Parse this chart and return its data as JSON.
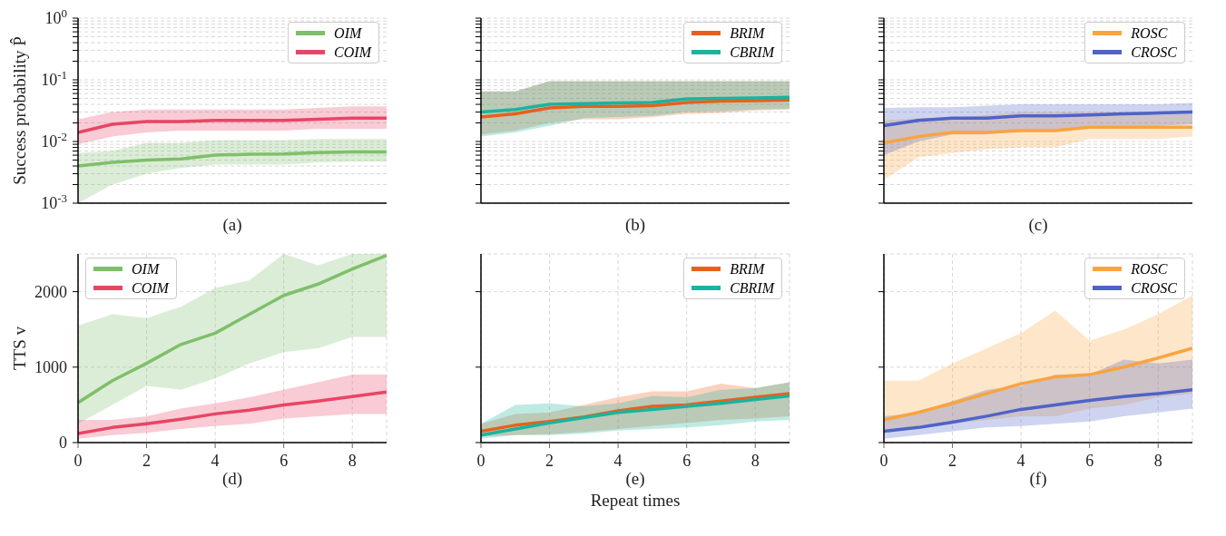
{
  "chart_data": [
    {
      "type": "line",
      "title": "(a)",
      "ylabel": "Success probability P̂",
      "log": "y",
      "grid": "y",
      "legend": "top right",
      "tick_labels": "y",
      "x": [
        0,
        1,
        2,
        3,
        4,
        5,
        6,
        7,
        8,
        9
      ],
      "xlim": [
        0,
        9
      ],
      "ylim": [
        0.001,
        1
      ],
      "yticks": [
        {
          "value": 0.001,
          "label": "10$^{-3}$"
        },
        {
          "value": 0.002,
          "label": null
        },
        {
          "value": 0.003,
          "label": null
        },
        {
          "value": 0.004,
          "label": null
        },
        {
          "value": 0.005,
          "label": null
        },
        {
          "value": 0.006,
          "label": null
        },
        {
          "value": 0.007,
          "label": null
        },
        {
          "value": 0.008,
          "label": null
        },
        {
          "value": 0.009,
          "label": null
        },
        {
          "value": 0.01,
          "label": "10$^{-2}$"
        },
        {
          "value": 0.02,
          "label": null
        },
        {
          "value": 0.03,
          "label": null
        },
        {
          "value": 0.04,
          "label": null
        },
        {
          "value": 0.05,
          "label": null
        },
        {
          "value": 0.06,
          "label": null
        },
        {
          "value": 0.07,
          "label": null
        },
        {
          "value": 0.08,
          "label": null
        },
        {
          "value": 0.09,
          "label": null
        },
        {
          "value": 0.1,
          "label": "10$^{-1}$"
        },
        {
          "value": 0.2,
          "label": null
        },
        {
          "value": 0.3,
          "label": null
        },
        {
          "value": 0.4,
          "label": null
        },
        {
          "value": 0.5,
          "label": null
        },
        {
          "value": 0.6,
          "label": null
        },
        {
          "value": 0.7,
          "label": null
        },
        {
          "value": 0.8,
          "label": null
        },
        {
          "value": 0.9,
          "label": null
        },
        {
          "value": 1,
          "label": "10$^{0}$"
        }
      ],
      "series": [
        {
          "name": "OIM",
          "color": "#7fbf6a",
          "values": [
            0.004,
            0.0046,
            0.005,
            0.0052,
            0.006,
            0.0062,
            0.0063,
            0.0066,
            0.0068,
            0.0068
          ],
          "lower": [
            0.001,
            0.002,
            0.003,
            0.0037,
            0.0042,
            0.0042,
            0.0042,
            0.0046,
            0.0047,
            0.0047
          ],
          "upper": [
            0.0065,
            0.007,
            0.0095,
            0.0095,
            0.0105,
            0.0105,
            0.0105,
            0.011,
            0.011,
            0.011
          ]
        },
        {
          "name": "COIM",
          "color": "#e84565",
          "values": [
            0.014,
            0.019,
            0.021,
            0.021,
            0.022,
            0.022,
            0.022,
            0.023,
            0.024,
            0.024
          ],
          "lower": [
            0.009,
            0.012,
            0.014,
            0.015,
            0.015,
            0.015,
            0.015,
            0.016,
            0.016,
            0.016
          ],
          "upper": [
            0.023,
            0.03,
            0.033,
            0.033,
            0.033,
            0.033,
            0.033,
            0.035,
            0.037,
            0.037
          ]
        }
      ]
    },
    {
      "type": "line",
      "title": "(b)",
      "log": "y",
      "grid": "y",
      "legend": "top right",
      "tick_labels": false,
      "x": [
        0,
        1,
        2,
        3,
        4,
        5,
        6,
        7,
        8,
        9
      ],
      "xlim": [
        0,
        9
      ],
      "ylim": [
        0.001,
        1
      ],
      "yticks": [
        {
          "value": 0.001,
          "label": null
        },
        {
          "value": 0.002,
          "label": null
        },
        {
          "value": 0.003,
          "label": null
        },
        {
          "value": 0.004,
          "label": null
        },
        {
          "value": 0.005,
          "label": null
        },
        {
          "value": 0.006,
          "label": null
        },
        {
          "value": 0.007,
          "label": null
        },
        {
          "value": 0.008,
          "label": null
        },
        {
          "value": 0.009,
          "label": null
        },
        {
          "value": 0.01,
          "label": null
        },
        {
          "value": 0.02,
          "label": null
        },
        {
          "value": 0.03,
          "label": null
        },
        {
          "value": 0.04,
          "label": null
        },
        {
          "value": 0.05,
          "label": null
        },
        {
          "value": 0.06,
          "label": null
        },
        {
          "value": 0.07,
          "label": null
        },
        {
          "value": 0.08,
          "label": null
        },
        {
          "value": 0.09,
          "label": null
        },
        {
          "value": 0.1,
          "label": null
        },
        {
          "value": 0.2,
          "label": null
        },
        {
          "value": 0.3,
          "label": null
        },
        {
          "value": 0.4,
          "label": null
        },
        {
          "value": 0.5,
          "label": null
        },
        {
          "value": 0.6,
          "label": null
        },
        {
          "value": 0.7,
          "label": null
        },
        {
          "value": 0.8,
          "label": null
        },
        {
          "value": 0.9,
          "label": null
        },
        {
          "value": 1,
          "label": null
        }
      ],
      "series": [
        {
          "name": "BRIM",
          "color": "#e8601c",
          "values": [
            0.025,
            0.028,
            0.035,
            0.037,
            0.037,
            0.038,
            0.043,
            0.045,
            0.046,
            0.047
          ],
          "lower": [
            0.013,
            0.015,
            0.02,
            0.023,
            0.023,
            0.025,
            0.028,
            0.029,
            0.032,
            0.033
          ],
          "upper": [
            0.065,
            0.065,
            0.095,
            0.095,
            0.095,
            0.095,
            0.095,
            0.095,
            0.095,
            0.095
          ]
        },
        {
          "name": "CBRIM",
          "color": "#1ab39f",
          "values": [
            0.03,
            0.033,
            0.04,
            0.041,
            0.042,
            0.043,
            0.049,
            0.05,
            0.051,
            0.052
          ],
          "lower": [
            0.012,
            0.014,
            0.018,
            0.024,
            0.025,
            0.026,
            0.03,
            0.031,
            0.033,
            0.034
          ],
          "upper": [
            0.065,
            0.065,
            0.095,
            0.095,
            0.095,
            0.095,
            0.095,
            0.095,
            0.095,
            0.095
          ]
        }
      ]
    },
    {
      "type": "line",
      "title": "(c)",
      "log": "y",
      "grid": "y",
      "legend": "top right",
      "tick_labels": false,
      "x": [
        0,
        1,
        2,
        3,
        4,
        5,
        6,
        7,
        8,
        9
      ],
      "xlim": [
        0,
        9
      ],
      "ylim": [
        0.001,
        1
      ],
      "yticks": [
        {
          "value": 0.001,
          "label": null
        },
        {
          "value": 0.002,
          "label": null
        },
        {
          "value": 0.003,
          "label": null
        },
        {
          "value": 0.004,
          "label": null
        },
        {
          "value": 0.005,
          "label": null
        },
        {
          "value": 0.006,
          "label": null
        },
        {
          "value": 0.007,
          "label": null
        },
        {
          "value": 0.008,
          "label": null
        },
        {
          "value": 0.009,
          "label": null
        },
        {
          "value": 0.01,
          "label": null
        },
        {
          "value": 0.02,
          "label": null
        },
        {
          "value": 0.03,
          "label": null
        },
        {
          "value": 0.04,
          "label": null
        },
        {
          "value": 0.05,
          "label": null
        },
        {
          "value": 0.06,
          "label": null
        },
        {
          "value": 0.07,
          "label": null
        },
        {
          "value": 0.08,
          "label": null
        },
        {
          "value": 0.09,
          "label": null
        },
        {
          "value": 0.1,
          "label": null
        },
        {
          "value": 0.2,
          "label": null
        },
        {
          "value": 0.3,
          "label": null
        },
        {
          "value": 0.4,
          "label": null
        },
        {
          "value": 0.5,
          "label": null
        },
        {
          "value": 0.6,
          "label": null
        },
        {
          "value": 0.7,
          "label": null
        },
        {
          "value": 0.8,
          "label": null
        },
        {
          "value": 0.9,
          "label": null
        },
        {
          "value": 1,
          "label": null
        }
      ],
      "series": [
        {
          "name": "ROSC",
          "color": "#f9a440",
          "values": [
            0.0095,
            0.012,
            0.014,
            0.014,
            0.015,
            0.015,
            0.017,
            0.017,
            0.017,
            0.017
          ],
          "lower": [
            0.0024,
            0.0055,
            0.0065,
            0.0075,
            0.008,
            0.008,
            0.011,
            0.011,
            0.011,
            0.012
          ],
          "upper": [
            0.022,
            0.024,
            0.024,
            0.027,
            0.03,
            0.03,
            0.03,
            0.03,
            0.03,
            0.03
          ]
        },
        {
          "name": "CROSC",
          "color": "#4f63c7",
          "values": [
            0.018,
            0.022,
            0.024,
            0.024,
            0.026,
            0.026,
            0.027,
            0.028,
            0.029,
            0.03
          ],
          "lower": [
            0.006,
            0.01,
            0.013,
            0.013,
            0.015,
            0.015,
            0.017,
            0.017,
            0.018,
            0.019
          ],
          "upper": [
            0.035,
            0.036,
            0.036,
            0.038,
            0.04,
            0.04,
            0.04,
            0.04,
            0.04,
            0.042
          ]
        }
      ]
    },
    {
      "type": "line",
      "title": "(d)",
      "ylabel": "TTS v",
      "grid": true,
      "legend": "top left",
      "x": [
        0,
        1,
        2,
        3,
        4,
        5,
        6,
        7,
        8,
        9
      ],
      "xlim": [
        0,
        9
      ],
      "ylim": [
        0,
        2500
      ],
      "xticks": [
        0,
        2,
        4,
        6,
        8
      ],
      "yticks": [
        0,
        1000,
        2000
      ],
      "series": [
        {
          "name": "OIM",
          "color": "#7fbf6a",
          "values": [
            530,
            820,
            1050,
            1300,
            1450,
            1700,
            1950,
            2100,
            2300,
            2480
          ],
          "lower": [
            250,
            500,
            750,
            700,
            850,
            1050,
            1200,
            1250,
            1400,
            1400
          ],
          "upper": [
            1550,
            1700,
            1650,
            1800,
            2050,
            2150,
            2500,
            2350,
            2500,
            2500
          ]
        },
        {
          "name": "COIM",
          "color": "#e84565",
          "values": [
            120,
            200,
            250,
            310,
            380,
            430,
            500,
            550,
            610,
            670
          ],
          "lower": [
            50,
            100,
            130,
            180,
            220,
            250,
            320,
            350,
            380,
            380
          ],
          "upper": [
            300,
            300,
            350,
            450,
            520,
            600,
            700,
            800,
            900,
            900
          ]
        }
      ]
    },
    {
      "type": "line",
      "title": "(e)",
      "xlabel": "Repeat times",
      "grid": true,
      "legend": "top right",
      "tick_labels": "x",
      "x": [
        0,
        1,
        2,
        3,
        4,
        5,
        6,
        7,
        8,
        9
      ],
      "xlim": [
        0,
        9
      ],
      "ylim": [
        0,
        2500
      ],
      "xticks": [
        0,
        2,
        4,
        6,
        8
      ],
      "yticks": [
        {
          "value": 0,
          "label": null
        },
        {
          "value": 1000,
          "label": null
        },
        {
          "value": 2000,
          "label": null
        }
      ],
      "series": [
        {
          "name": "BRIM",
          "color": "#e8601c",
          "values": [
            150,
            230,
            280,
            340,
            420,
            480,
            500,
            550,
            600,
            650
          ],
          "lower": [
            80,
            100,
            110,
            140,
            180,
            220,
            260,
            300,
            320,
            350
          ],
          "upper": [
            250,
            380,
            400,
            500,
            600,
            680,
            680,
            780,
            720,
            800
          ]
        },
        {
          "name": "CBRIM",
          "color": "#1ab39f",
          "values": [
            100,
            180,
            260,
            330,
            400,
            440,
            480,
            520,
            570,
            620
          ],
          "lower": [
            50,
            100,
            100,
            120,
            160,
            180,
            200,
            230,
            280,
            300
          ],
          "upper": [
            250,
            500,
            520,
            480,
            520,
            620,
            600,
            700,
            720,
            800
          ]
        }
      ]
    },
    {
      "type": "line",
      "title": "(f)",
      "grid": true,
      "legend": "top right",
      "tick_labels": "x",
      "x": [
        0,
        1,
        2,
        3,
        4,
        5,
        6,
        7,
        8,
        9
      ],
      "xlim": [
        0,
        9
      ],
      "ylim": [
        0,
        2500
      ],
      "xticks": [
        0,
        2,
        4,
        6,
        8
      ],
      "yticks": [
        {
          "value": 0,
          "label": null
        },
        {
          "value": 1000,
          "label": null
        },
        {
          "value": 2000,
          "label": null
        }
      ],
      "series": [
        {
          "name": "ROSC",
          "color": "#f9a440",
          "values": [
            300,
            400,
            520,
            650,
            780,
            870,
            900,
            1000,
            1120,
            1250
          ],
          "lower": [
            150,
            200,
            250,
            300,
            350,
            350,
            450,
            500,
            600,
            650
          ],
          "upper": [
            820,
            820,
            1050,
            1250,
            1450,
            1750,
            1350,
            1500,
            1700,
            1950
          ]
        },
        {
          "name": "CROSC",
          "color": "#4f63c7",
          "values": [
            150,
            200,
            270,
            350,
            440,
            500,
            560,
            610,
            650,
            700
          ],
          "lower": [
            50,
            100,
            150,
            200,
            220,
            250,
            280,
            350,
            400,
            450
          ],
          "upper": [
            350,
            400,
            550,
            700,
            750,
            900,
            900,
            1100,
            1050,
            1100
          ]
        }
      ]
    }
  ]
}
